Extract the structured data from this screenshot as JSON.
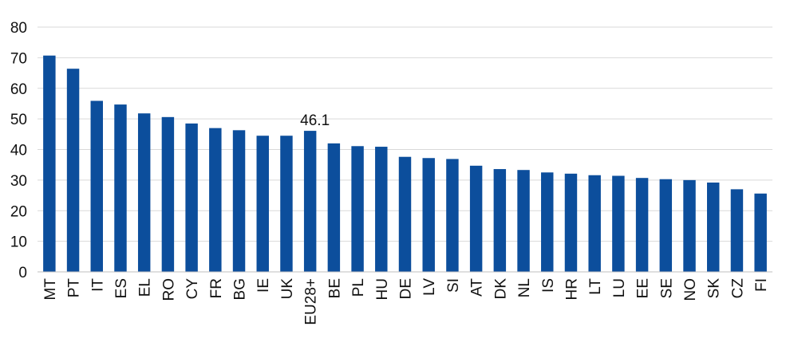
{
  "chart_data": {
    "type": "bar",
    "title": "",
    "xlabel": "",
    "ylabel": "",
    "ylim": [
      0,
      80
    ],
    "yticks": [
      0,
      10,
      20,
      30,
      40,
      50,
      60,
      70,
      80
    ],
    "grid": true,
    "bar_color": "#0c4e9c",
    "grid_color": "#d9d9d9",
    "categories": [
      "MT",
      "PT",
      "IT",
      "ES",
      "EL",
      "RO",
      "CY",
      "FR",
      "BG",
      "IE",
      "UK",
      "EU28+",
      "BE",
      "PL",
      "HU",
      "DE",
      "LV",
      "SI",
      "AT",
      "DK",
      "NL",
      "IS",
      "HR",
      "LT",
      "LU",
      "EE",
      "SE",
      "NO",
      "SK",
      "CZ",
      "FI"
    ],
    "values": [
      70.7,
      66.4,
      55.9,
      54.7,
      51.8,
      50.6,
      48.5,
      47.0,
      46.3,
      44.5,
      44.5,
      46.1,
      42.0,
      41.1,
      40.9,
      37.6,
      37.2,
      36.9,
      34.7,
      33.6,
      33.3,
      32.5,
      32.1,
      31.6,
      31.4,
      30.7,
      30.3,
      30.0,
      29.2,
      27.0,
      25.6
    ],
    "annotations": [
      {
        "category": "EU28+",
        "text": "46.1"
      }
    ]
  }
}
